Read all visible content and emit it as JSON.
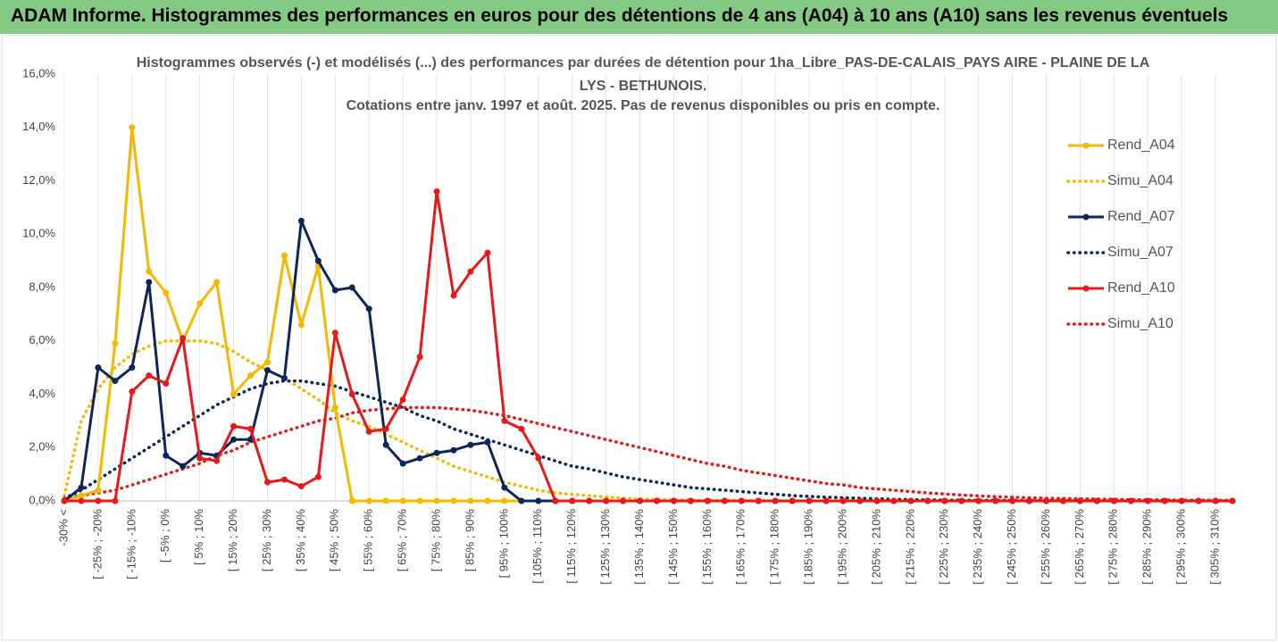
{
  "header": {
    "title": "ADAM Informe. Histogrammes des performances en euros pour des détentions de 4 ans (A04) à 10 ans (A10) sans les revenus éventuels"
  },
  "chart_data": {
    "type": "line",
    "title": "Histogrammes observés (-) et modélisés (...) des performances par durées de détention pour 1ha_Libre_PAS-DE-CALAIS_PAYS AIRE - PLAINE DE LA LYS - BETHUNOIS.",
    "subtitle": "Cotations entre janv. 1997 et août. 2025. Pas de revenus disponibles ou pris en compte.",
    "categories": [
      "-30% <",
      null,
      "[ -25% ; -20%",
      null,
      "[ -15% ; -10%",
      null,
      "[ -5% ; 0%",
      null,
      "[ 5% ; 10%",
      null,
      "[ 15% ; 20%",
      null,
      "[ 25% ; 30%",
      null,
      "[ 35% ; 40%",
      null,
      "[ 45% ; 50%",
      null,
      "[ 55% ; 60%",
      null,
      "[ 65% ; 70%",
      null,
      "[ 75% ; 80%",
      null,
      "[ 85% ; 90%",
      null,
      "[ 95% ; 100%",
      null,
      "[ 105% ; 110%",
      null,
      "[ 115% ; 120%",
      null,
      "[ 125% ; 130%",
      null,
      "[ 135% ; 140%",
      null,
      "[ 145% ; 150%",
      null,
      "[ 155% ; 160%",
      null,
      "[ 165% ; 170%",
      null,
      "[ 175% ; 180%",
      null,
      "[ 185% ; 190%",
      null,
      "[ 195% ; 200%",
      null,
      "[ 205% ; 210%",
      null,
      "[ 215% ; 220%",
      null,
      "[ 225% ; 230%",
      null,
      "[ 235% ; 240%",
      null,
      "[ 245% ; 250%",
      null,
      "[ 255% ; 260%",
      null,
      "[ 265% ; 270%",
      null,
      "[ 275% ; 280%",
      null,
      "[ 285% ; 290%",
      null,
      "[ 295% ; 300%",
      null,
      "[ 305% ; 310%",
      null
    ],
    "ylim": [
      0,
      16
    ],
    "yticks": [
      {
        "value": 0,
        "label": "0,0%"
      },
      {
        "value": 2,
        "label": "2,0%"
      },
      {
        "value": 4,
        "label": "4,0%"
      },
      {
        "value": 6,
        "label": "6,0%"
      },
      {
        "value": 8,
        "label": "8,0%"
      },
      {
        "value": 10,
        "label": "10,0%"
      },
      {
        "value": 12,
        "label": "12,0%"
      },
      {
        "value": 14,
        "label": "14,0%"
      },
      {
        "value": 16,
        "label": "16,0%"
      }
    ],
    "grid": true,
    "legend": "right",
    "series": [
      {
        "name": "Rend_A04",
        "color": "#f5b800",
        "style": "solid",
        "markers": true,
        "values": [
          0,
          0.2,
          0.4,
          5.9,
          14.0,
          8.6,
          7.8,
          6.0,
          7.4,
          8.2,
          4.0,
          4.7,
          5.2,
          9.2,
          6.6,
          8.8,
          3.5,
          0,
          0,
          0,
          0,
          0,
          0,
          0,
          0,
          0,
          0,
          0,
          0,
          0,
          0,
          0,
          0,
          0,
          0,
          0,
          0,
          0,
          0,
          0,
          0,
          0,
          0,
          0,
          0,
          0,
          0,
          0,
          0,
          0,
          0,
          0,
          0,
          0,
          0,
          0,
          0,
          0,
          0,
          0,
          0,
          0,
          0,
          0,
          0,
          0,
          0,
          0,
          0,
          0
        ]
      },
      {
        "name": "Simu_A04",
        "color": "#f5b800",
        "style": "dotted",
        "markers": false,
        "values": [
          0.2,
          3.0,
          4.2,
          5.0,
          5.5,
          5.8,
          6.0,
          6.0,
          6.0,
          5.9,
          5.6,
          5.2,
          4.9,
          4.6,
          4.2,
          3.8,
          3.3,
          3.0,
          2.8,
          2.5,
          2.2,
          1.9,
          1.6,
          1.3,
          1.1,
          0.9,
          0.7,
          0.55,
          0.4,
          0.3,
          0.25,
          0.2,
          0.15,
          0.1,
          0.07,
          0.05,
          0.04,
          0.03,
          0.02,
          0.02,
          0.01,
          0.01,
          0,
          0,
          0,
          0,
          0,
          0,
          0,
          0,
          0,
          0,
          0,
          0,
          0,
          0,
          0,
          0,
          0,
          0,
          0,
          0,
          0,
          0,
          0,
          0,
          0,
          0,
          0,
          0
        ]
      },
      {
        "name": "Rend_A07",
        "color": "#0d2659",
        "style": "solid",
        "markers": true,
        "values": [
          0,
          0.5,
          5.0,
          4.5,
          5.0,
          8.2,
          1.7,
          1.3,
          1.8,
          1.7,
          2.3,
          2.3,
          4.9,
          4.6,
          10.5,
          9.0,
          7.9,
          8.0,
          7.2,
          2.1,
          1.4,
          1.6,
          1.8,
          1.9,
          2.1,
          2.2,
          0.5,
          0,
          0,
          0,
          0,
          0,
          0,
          0,
          0,
          0,
          0,
          0,
          0,
          0,
          0,
          0,
          0,
          0,
          0,
          0,
          0,
          0,
          0,
          0,
          0,
          0,
          0,
          0,
          0,
          0,
          0,
          0,
          0,
          0,
          0,
          0,
          0,
          0,
          0,
          0,
          0,
          0,
          0,
          0
        ]
      },
      {
        "name": "Simu_A07",
        "color": "#0d2659",
        "style": "dotted",
        "markers": false,
        "values": [
          0.1,
          0.4,
          0.8,
          1.2,
          1.6,
          2.0,
          2.4,
          2.8,
          3.2,
          3.6,
          3.9,
          4.2,
          4.4,
          4.5,
          4.5,
          4.4,
          4.3,
          4.1,
          3.9,
          3.7,
          3.5,
          3.2,
          3.0,
          2.7,
          2.5,
          2.3,
          2.1,
          1.9,
          1.7,
          1.5,
          1.3,
          1.2,
          1.05,
          0.9,
          0.8,
          0.7,
          0.6,
          0.5,
          0.45,
          0.4,
          0.35,
          0.3,
          0.25,
          0.2,
          0.17,
          0.14,
          0.12,
          0.1,
          0.08,
          0.06,
          0.05,
          0.04,
          0.03,
          0.03,
          0.02,
          0.02,
          0.02,
          0.01,
          0.01,
          0.01,
          0.01,
          0,
          0,
          0,
          0,
          0,
          0,
          0,
          0,
          0
        ]
      },
      {
        "name": "Rend_A10",
        "color": "#e81818",
        "style": "solid",
        "markers": true,
        "values": [
          0,
          0,
          0,
          0,
          4.1,
          4.7,
          4.4,
          6.1,
          1.6,
          1.5,
          2.8,
          2.7,
          0.7,
          0.8,
          0.55,
          0.9,
          6.3,
          4.0,
          2.6,
          2.7,
          3.8,
          5.4,
          11.6,
          7.7,
          8.6,
          9.3,
          3.0,
          2.7,
          1.6,
          0,
          0,
          0,
          0,
          0,
          0,
          0,
          0,
          0,
          0,
          0,
          0,
          0,
          0,
          0,
          0,
          0,
          0,
          0,
          0,
          0,
          0,
          0,
          0,
          0,
          0,
          0,
          0,
          0,
          0,
          0,
          0,
          0,
          0,
          0,
          0,
          0,
          0,
          0,
          0,
          0
        ]
      },
      {
        "name": "Simu_A10",
        "color": "#e81818",
        "style": "dotted",
        "markers": false,
        "values": [
          0.1,
          0.2,
          0.3,
          0.4,
          0.6,
          0.8,
          1.0,
          1.2,
          1.4,
          1.7,
          1.9,
          2.2,
          2.4,
          2.6,
          2.8,
          3.0,
          3.1,
          3.3,
          3.4,
          3.45,
          3.5,
          3.5,
          3.5,
          3.45,
          3.4,
          3.3,
          3.2,
          3.05,
          2.9,
          2.75,
          2.6,
          2.45,
          2.3,
          2.15,
          2.0,
          1.85,
          1.7,
          1.55,
          1.4,
          1.3,
          1.15,
          1.05,
          0.95,
          0.85,
          0.75,
          0.65,
          0.6,
          0.5,
          0.45,
          0.4,
          0.35,
          0.3,
          0.26,
          0.22,
          0.19,
          0.16,
          0.14,
          0.12,
          0.1,
          0.09,
          0.08,
          0.07,
          0.06,
          0.05,
          0.04,
          0.04,
          0.03,
          0.03,
          0.02,
          0.02
        ]
      }
    ]
  }
}
